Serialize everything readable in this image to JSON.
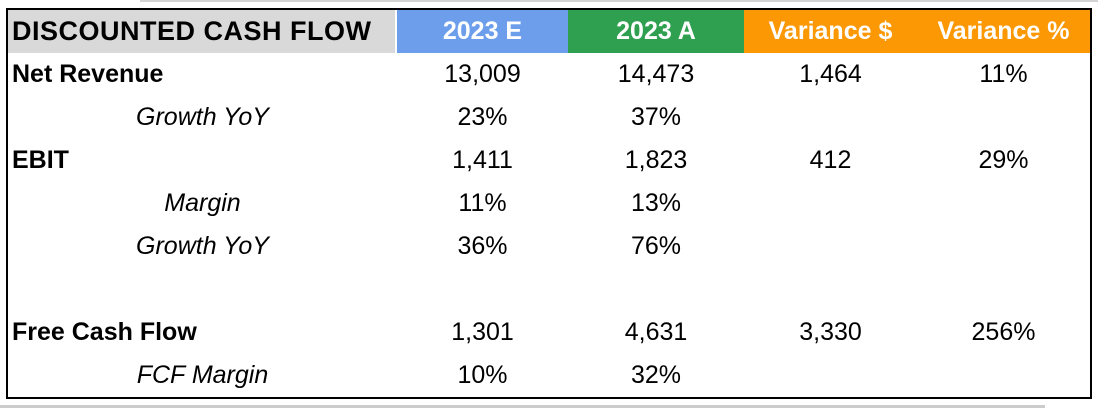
{
  "table": {
    "title": "DISCOUNTED CASH FLOW",
    "columns": [
      "2023 E",
      "2023 A",
      "Variance $",
      "Variance %"
    ],
    "rows": [
      {
        "label": "Net Revenue",
        "style": "bold",
        "values": [
          "13,009",
          "14,473",
          "1,464",
          "11%"
        ]
      },
      {
        "label": "Growth YoY",
        "style": "italic",
        "values": [
          "23%",
          "37%",
          "",
          ""
        ]
      },
      {
        "label": "EBIT",
        "style": "bold",
        "values": [
          "1,411",
          "1,823",
          "412",
          "29%"
        ]
      },
      {
        "label": "Margin",
        "style": "italic",
        "values": [
          "11%",
          "13%",
          "",
          ""
        ]
      },
      {
        "label": "Growth YoY",
        "style": "italic",
        "values": [
          "36%",
          "76%",
          "",
          ""
        ]
      },
      {
        "label": "",
        "style": "blank",
        "values": [
          "",
          "",
          "",
          ""
        ]
      },
      {
        "label": "Free Cash Flow",
        "style": "bold",
        "values": [
          "1,301",
          "4,631",
          "3,330",
          "256%"
        ]
      },
      {
        "label": "FCF Margin",
        "style": "italic",
        "values": [
          "10%",
          "32%",
          "",
          ""
        ]
      }
    ],
    "colors": {
      "title_bg": "#d9d9d9",
      "estimate_bg": "#6d9eeb",
      "actual_bg": "#2fa050",
      "variance_bg": "#fb9803",
      "header_text": "#ffffff",
      "body_text": "#000000",
      "border": "#000000"
    }
  }
}
